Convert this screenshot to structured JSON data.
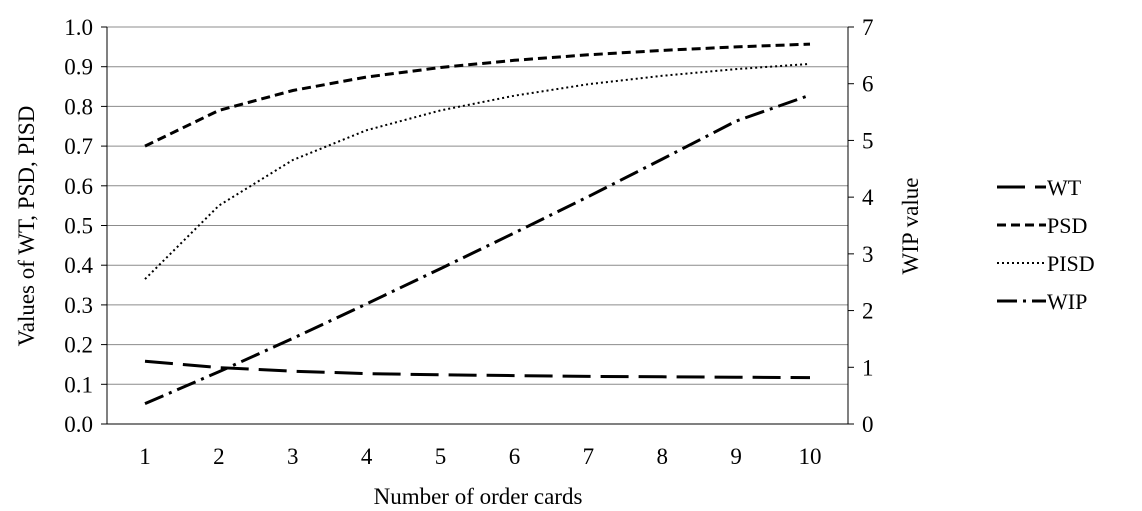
{
  "chart_data": {
    "type": "line",
    "title": "",
    "xlabel": "Number of order cards",
    "ylabel": "Values of WT, PSD, PISD",
    "y2label": "WIP value",
    "x": [
      1,
      2,
      3,
      4,
      5,
      6,
      7,
      8,
      9,
      10
    ],
    "x_tick_labels": [
      "1",
      "2",
      "3",
      "4",
      "5",
      "6",
      "7",
      "8",
      "9",
      "10"
    ],
    "ylim": [
      0,
      1.0
    ],
    "y_tick_labels": [
      "0.0",
      "0.1",
      "0.2",
      "0.3",
      "0.4",
      "0.5",
      "0.6",
      "0.7",
      "0.8",
      "0.9",
      "1.0"
    ],
    "y2lim": [
      0,
      7
    ],
    "y2_tick_labels": [
      "0",
      "1",
      "2",
      "3",
      "4",
      "5",
      "6",
      "7"
    ],
    "grid": true,
    "legend_position": "right",
    "series": [
      {
        "name": "WT",
        "axis": "left",
        "dash": "long-dash",
        "color": "#000000",
        "values": [
          0.158,
          0.142,
          0.133,
          0.127,
          0.124,
          0.122,
          0.12,
          0.119,
          0.118,
          0.117
        ]
      },
      {
        "name": "PSD",
        "axis": "left",
        "dash": "dash",
        "color": "#000000",
        "values": [
          0.7,
          0.79,
          0.84,
          0.874,
          0.898,
          0.916,
          0.93,
          0.941,
          0.95,
          0.957
        ]
      },
      {
        "name": "PISD",
        "axis": "left",
        "dash": "dot",
        "color": "#000000",
        "values": [
          0.365,
          0.55,
          0.665,
          0.74,
          0.79,
          0.827,
          0.856,
          0.877,
          0.894,
          0.907
        ]
      },
      {
        "name": "WIP",
        "axis": "right",
        "dash": "dash-dot",
        "color": "#000000",
        "values": [
          0.36,
          0.92,
          1.51,
          2.12,
          2.74,
          3.37,
          4.01,
          4.67,
          5.34,
          5.8
        ]
      }
    ]
  }
}
